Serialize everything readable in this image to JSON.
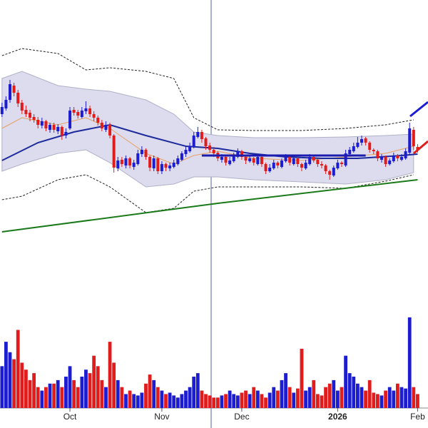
{
  "chart_data": [
    {
      "type": "candlestick",
      "up_color": "#1c1cd0",
      "down_color": "#e01c1c",
      "xlim": [
        -0.5,
        106.6
      ],
      "ylim": [
        0,
        340
      ],
      "xticks": [
        {
          "value": 17,
          "label": "Oct"
        },
        {
          "value": 40,
          "label": "Nov"
        },
        {
          "value": 60,
          "label": "Dec"
        },
        {
          "value": 84,
          "label": "2026"
        },
        {
          "value": 104,
          "label": "Feb"
        }
      ],
      "candles": [
        [
          180,
          196,
          176,
          190
        ],
        [
          188,
          205,
          185,
          200
        ],
        [
          200,
          228,
          196,
          222
        ],
        [
          220,
          224,
          205,
          210
        ],
        [
          210,
          214,
          190,
          195
        ],
        [
          196,
          200,
          180,
          185
        ],
        [
          186,
          192,
          176,
          180
        ],
        [
          182,
          186,
          170,
          175
        ],
        [
          176,
          180,
          168,
          172
        ],
        [
          172,
          176,
          160,
          165
        ],
        [
          164,
          175,
          160,
          170
        ],
        [
          170,
          172,
          156,
          160
        ],
        [
          158,
          168,
          154,
          165
        ],
        [
          165,
          168,
          154,
          158
        ],
        [
          156,
          166,
          152,
          162
        ],
        [
          162,
          164,
          144,
          150
        ],
        [
          150,
          160,
          146,
          155
        ],
        [
          160,
          190,
          158,
          185
        ],
        [
          186,
          190,
          178,
          182
        ],
        [
          183,
          186,
          174,
          178
        ],
        [
          176,
          190,
          174,
          185
        ],
        [
          184,
          198,
          180,
          188
        ],
        [
          188,
          192,
          176,
          180
        ],
        [
          180,
          184,
          170,
          175
        ],
        [
          175,
          178,
          164,
          168
        ],
        [
          168,
          172,
          156,
          160
        ],
        [
          158,
          170,
          155,
          165
        ],
        [
          165,
          168,
          146,
          150
        ],
        [
          150,
          152,
          98,
          105
        ],
        [
          104,
          120,
          100,
          115
        ],
        [
          116,
          120,
          106,
          110
        ],
        [
          108,
          122,
          104,
          118
        ],
        [
          118,
          120,
          104,
          108
        ],
        [
          106,
          116,
          102,
          112
        ],
        [
          110,
          130,
          108,
          125
        ],
        [
          124,
          135,
          120,
          130
        ],
        [
          130,
          132,
          116,
          120
        ],
        [
          120,
          122,
          100,
          105
        ],
        [
          104,
          122,
          100,
          118
        ],
        [
          118,
          120,
          96,
          100
        ],
        [
          100,
          114,
          96,
          110
        ],
        [
          110,
          112,
          100,
          105
        ],
        [
          104,
          112,
          100,
          108
        ],
        [
          106,
          116,
          104,
          112
        ],
        [
          110,
          122,
          108,
          118
        ],
        [
          116,
          128,
          114,
          125
        ],
        [
          124,
          134,
          120,
          130
        ],
        [
          128,
          140,
          126,
          135
        ],
        [
          134,
          155,
          132,
          150
        ],
        [
          148,
          162,
          146,
          155
        ],
        [
          155,
          158,
          140,
          145
        ],
        [
          146,
          148,
          130,
          135
        ],
        [
          136,
          140,
          126,
          130
        ],
        [
          130,
          134,
          120,
          125
        ],
        [
          126,
          128,
          114,
          118
        ],
        [
          116,
          124,
          112,
          120
        ],
        [
          120,
          122,
          108,
          112
        ],
        [
          110,
          120,
          108,
          115
        ],
        [
          114,
          126,
          112,
          122
        ],
        [
          120,
          132,
          118,
          128
        ],
        [
          128,
          130,
          116,
          120
        ],
        [
          120,
          122,
          110,
          115
        ],
        [
          114,
          122,
          112,
          118
        ],
        [
          118,
          120,
          108,
          112
        ],
        [
          110,
          124,
          108,
          120
        ],
        [
          120,
          122,
          106,
          110
        ],
        [
          110,
          112,
          96,
          100
        ],
        [
          100,
          110,
          98,
          105
        ],
        [
          104,
          116,
          102,
          112
        ],
        [
          112,
          114,
          104,
          108
        ],
        [
          106,
          118,
          104,
          115
        ],
        [
          114,
          124,
          112,
          120
        ],
        [
          120,
          122,
          108,
          112
        ],
        [
          110,
          122,
          108,
          118
        ],
        [
          118,
          120,
          106,
          110
        ],
        [
          110,
          112,
          100,
          105
        ],
        [
          104,
          116,
          102,
          112
        ],
        [
          110,
          124,
          108,
          120
        ],
        [
          120,
          122,
          112,
          115
        ],
        [
          116,
          118,
          106,
          110
        ],
        [
          110,
          114,
          104,
          108
        ],
        [
          108,
          110,
          96,
          100
        ],
        [
          100,
          102,
          88,
          95
        ],
        [
          94,
          108,
          92,
          105
        ],
        [
          104,
          116,
          102,
          112
        ],
        [
          112,
          114,
          106,
          110
        ],
        [
          108,
          130,
          106,
          125
        ],
        [
          124,
          134,
          122,
          130
        ],
        [
          128,
          140,
          126,
          135
        ],
        [
          134,
          148,
          132,
          140
        ],
        [
          140,
          150,
          136,
          145
        ],
        [
          146,
          148,
          136,
          140
        ],
        [
          140,
          142,
          126,
          130
        ],
        [
          130,
          132,
          124,
          128
        ],
        [
          128,
          130,
          114,
          118
        ],
        [
          116,
          124,
          112,
          120
        ],
        [
          120,
          122,
          106,
          110
        ],
        [
          110,
          118,
          108,
          115
        ],
        [
          114,
          126,
          112,
          122
        ],
        [
          122,
          124,
          114,
          118
        ],
        [
          116,
          124,
          114,
          120
        ],
        [
          118,
          132,
          116,
          128
        ],
        [
          126,
          168,
          124,
          160
        ],
        [
          158,
          162,
          130,
          135
        ],
        [
          134,
          138,
          126,
          130
        ]
      ],
      "band": {
        "color": "#dcdcee",
        "x": [
          0,
          5,
          14,
          21,
          27,
          36,
          43,
          48,
          54,
          63,
          75,
          86,
          96,
          103
        ],
        "upper": [
          230,
          240,
          220,
          215,
          212,
          200,
          180,
          155,
          150,
          147,
          147,
          148,
          150,
          152
        ],
        "lower": [
          100,
          110,
          125,
          130,
          112,
          78,
          82,
          92,
          92,
          88,
          85,
          82,
          88,
          98
        ]
      },
      "lines": [
        {
          "color": "#222",
          "dashed": true,
          "width": 1,
          "x": [
            0,
            5,
            14,
            21,
            27,
            36,
            43,
            48,
            54,
            63,
            75,
            86,
            96,
            103
          ],
          "values": [
            262,
            272,
            265,
            242,
            245,
            240,
            230,
            175,
            158,
            157,
            157,
            160,
            165,
            172
          ]
        },
        {
          "color": "#222",
          "dashed": true,
          "width": 1,
          "x": [
            0,
            5,
            14,
            21,
            27,
            36,
            43,
            48,
            54,
            63,
            75,
            86,
            96,
            103
          ],
          "values": [
            60,
            65,
            88,
            95,
            78,
            42,
            48,
            72,
            78,
            78,
            78,
            76,
            86,
            95
          ]
        },
        {
          "color": "#e8a060",
          "dashed": false,
          "width": 1,
          "x": [
            0,
            5,
            14,
            21,
            27,
            36,
            43,
            48,
            54,
            63,
            75,
            86,
            96,
            103
          ],
          "values": [
            160,
            175,
            165,
            175,
            160,
            125,
            110,
            122,
            128,
            118,
            115,
            120,
            125,
            135
          ]
        },
        {
          "color": "#1c2a9c",
          "dashed": false,
          "width": 2,
          "x": [
            0,
            9,
            18,
            27,
            36,
            46,
            54,
            62,
            71,
            80,
            89,
            100,
            104
          ],
          "values": [
            115,
            140,
            155,
            165,
            150,
            135,
            132,
            125,
            120,
            118,
            118,
            122,
            124
          ]
        },
        {
          "color": "#1a7a1a",
          "dashed": false,
          "width": 2,
          "x": [
            0,
            54,
            104
          ],
          "values": [
            15,
            55,
            88
          ]
        }
      ],
      "hline": {
        "value": 122,
        "x": [
          50,
          91
        ],
        "color": "#1c1cb0"
      }
    },
    {
      "type": "bar",
      "xlim": [
        -0.5,
        106.6
      ],
      "ylim": [
        0,
        135
      ],
      "values": [
        60,
        95,
        80,
        70,
        112,
        65,
        55,
        40,
        50,
        30,
        25,
        30,
        35,
        35,
        40,
        30,
        45,
        60,
        40,
        30,
        45,
        55,
        50,
        75,
        60,
        40,
        30,
        95,
        65,
        40,
        30,
        20,
        25,
        20,
        18,
        22,
        35,
        48,
        40,
        30,
        25,
        20,
        22,
        18,
        15,
        20,
        25,
        30,
        45,
        50,
        25,
        20,
        18,
        15,
        15,
        18,
        20,
        25,
        20,
        18,
        22,
        25,
        20,
        30,
        25,
        20,
        15,
        22,
        30,
        25,
        40,
        50,
        30,
        22,
        28,
        85,
        25,
        30,
        40,
        20,
        18,
        30,
        35,
        40,
        25,
        30,
        75,
        50,
        45,
        35,
        30,
        25,
        40,
        22,
        20,
        18,
        25,
        30,
        25,
        35,
        30,
        28,
        130,
        30,
        20
      ]
    }
  ]
}
